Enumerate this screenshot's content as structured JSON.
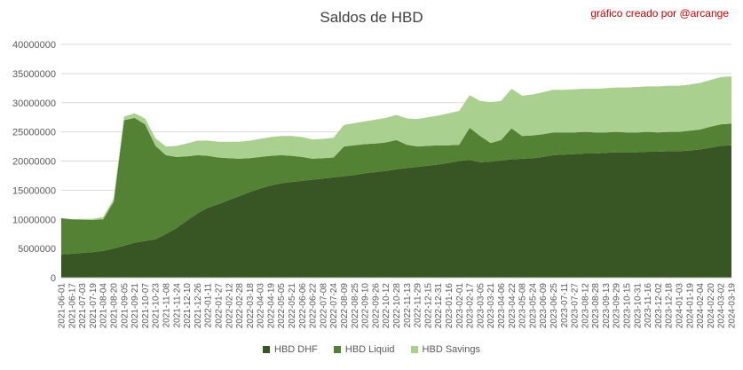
{
  "chart_data": {
    "type": "area",
    "stacked": true,
    "title": "Saldos de HBD",
    "credit": "gráfico creado por @arcange",
    "ylim": [
      0,
      40000000
    ],
    "yticks": [
      0,
      5000000,
      10000000,
      15000000,
      20000000,
      25000000,
      30000000,
      35000000,
      40000000
    ],
    "grid": true,
    "legend_position": "bottom",
    "x_tick_labels": [
      "2021-06-01",
      "2021-06-17",
      "2021-07-03",
      "2021-07-19",
      "2021-08-04",
      "2021-08-20",
      "2021-09-05",
      "2021-09-21",
      "2021-10-07",
      "2021-10-23",
      "2021-11-08",
      "2021-11-24",
      "2021-12-10",
      "2021-12-26",
      "2022-01-11",
      "2022-01-27",
      "2022-02-12",
      "2022-02-28",
      "2022-03-18",
      "2022-04-03",
      "2022-04-19",
      "2022-05-05",
      "2022-05-21",
      "2022-06-06",
      "2022-06-22",
      "2022-07-08",
      "2022-07-24",
      "2022-08-09",
      "2022-08-25",
      "2022-09-10",
      "2022-09-26",
      "2022-10-12",
      "2022-10-28",
      "2022-11-13",
      "2022-11-29",
      "2022-12-15",
      "2022-12-31",
      "2023-01-16",
      "2023-02-01",
      "2023-02-17",
      "2023-03-05",
      "2023-03-21",
      "2023-04-06",
      "2023-04-22",
      "2023-05-08",
      "2023-05-24",
      "2023-06-09",
      "2023-06-25",
      "2023-07-11",
      "2023-07-27",
      "2023-08-12",
      "2023-08-28",
      "2023-09-13",
      "2023-09-29",
      "2023-10-15",
      "2023-10-31",
      "2023-11-16",
      "2023-12-02",
      "2023-12-18",
      "2024-01-03",
      "2024-01-19",
      "2024-02-04",
      "2024-02-20",
      "2024-03-02",
      "2024-03-19"
    ],
    "x": [
      "2021-06-01",
      "2021-06-17",
      "2021-07-03",
      "2021-07-19",
      "2021-08-04",
      "2021-08-20",
      "2021-09-05",
      "2021-09-21",
      "2021-10-07",
      "2021-10-23",
      "2021-11-08",
      "2021-11-24",
      "2021-12-10",
      "2021-12-26",
      "2022-01-11",
      "2022-01-27",
      "2022-02-12",
      "2022-02-28",
      "2022-03-18",
      "2022-04-03",
      "2022-04-19",
      "2022-05-05",
      "2022-05-21",
      "2022-06-06",
      "2022-06-22",
      "2022-07-08",
      "2022-07-24",
      "2022-08-09",
      "2022-08-25",
      "2022-09-10",
      "2022-09-26",
      "2022-10-12",
      "2022-10-28",
      "2022-11-13",
      "2022-11-29",
      "2022-12-15",
      "2022-12-31",
      "2023-01-16",
      "2023-02-01",
      "2023-02-17",
      "2023-03-05",
      "2023-03-21",
      "2023-04-06",
      "2023-04-22",
      "2023-05-08",
      "2023-05-24",
      "2023-06-09",
      "2023-06-25",
      "2023-07-11",
      "2023-07-27",
      "2023-08-12",
      "2023-08-28",
      "2023-09-13",
      "2023-09-29",
      "2023-10-15",
      "2023-10-31",
      "2023-11-16",
      "2023-12-02",
      "2023-12-18",
      "2024-01-03",
      "2024-01-19",
      "2024-02-04",
      "2024-02-20",
      "2024-03-02",
      "2024-03-19"
    ],
    "series": [
      {
        "name": "HBD DHF",
        "color": "#375623",
        "values": [
          4000000,
          4100000,
          4250000,
          4400000,
          4600000,
          5000000,
          5500000,
          6000000,
          6300000,
          6600000,
          7500000,
          8500000,
          9800000,
          11000000,
          12000000,
          12600000,
          13300000,
          14000000,
          14700000,
          15300000,
          15800000,
          16200000,
          16400000,
          16600000,
          16800000,
          17000000,
          17200000,
          17400000,
          17600000,
          17900000,
          18100000,
          18300000,
          18600000,
          18800000,
          19000000,
          19200000,
          19400000,
          19700000,
          20000000,
          20200000,
          19800000,
          19900000,
          20100000,
          20300000,
          20400000,
          20500000,
          20700000,
          21000000,
          21100000,
          21200000,
          21300000,
          21300000,
          21400000,
          21500000,
          21500000,
          21500000,
          21600000,
          21600000,
          21700000,
          21700000,
          21800000,
          22000000,
          22300000,
          22600000,
          22700000
        ]
      },
      {
        "name": "HBD Liquid",
        "color": "#548235",
        "values": [
          6200000,
          5900000,
          5700000,
          5500000,
          5400000,
          8000000,
          21500000,
          21400000,
          20000000,
          16000000,
          13500000,
          12200000,
          11000000,
          10000000,
          8900000,
          8000000,
          7200000,
          6400000,
          5800000,
          5400000,
          5100000,
          4800000,
          4500000,
          4100000,
          3600000,
          3500000,
          3400000,
          5100000,
          5100000,
          5000000,
          4900000,
          4900000,
          5000000,
          4000000,
          3500000,
          3400000,
          3300000,
          3000000,
          2800000,
          5500000,
          4500000,
          3200000,
          3500000,
          5300000,
          3900000,
          3900000,
          3900000,
          3900000,
          3800000,
          3700000,
          3700000,
          3600000,
          3500000,
          3500000,
          3400000,
          3400000,
          3400000,
          3300000,
          3300000,
          3300000,
          3400000,
          3400000,
          3600000,
          3700000,
          3700000
        ]
      },
      {
        "name": "HBD Savings",
        "color": "#a9d08e",
        "values": [
          0,
          0,
          100000,
          200000,
          400000,
          500000,
          600000,
          800000,
          1000000,
          1300000,
          1500000,
          1900000,
          2200000,
          2500000,
          2600000,
          2700000,
          2800000,
          2900000,
          3000000,
          3100000,
          3200000,
          3300000,
          3400000,
          3400000,
          3300000,
          3300000,
          3400000,
          3700000,
          3800000,
          3900000,
          4100000,
          4200000,
          4300000,
          4500000,
          4700000,
          4900000,
          5100000,
          5500000,
          5800000,
          5600000,
          6000000,
          7000000,
          6700000,
          6800000,
          6900000,
          7000000,
          7200000,
          7300000,
          7300000,
          7400000,
          7400000,
          7500000,
          7600000,
          7600000,
          7700000,
          7800000,
          7800000,
          7900000,
          7900000,
          7900000,
          7900000,
          8000000,
          8000000,
          8100000,
          8100000
        ]
      }
    ]
  }
}
